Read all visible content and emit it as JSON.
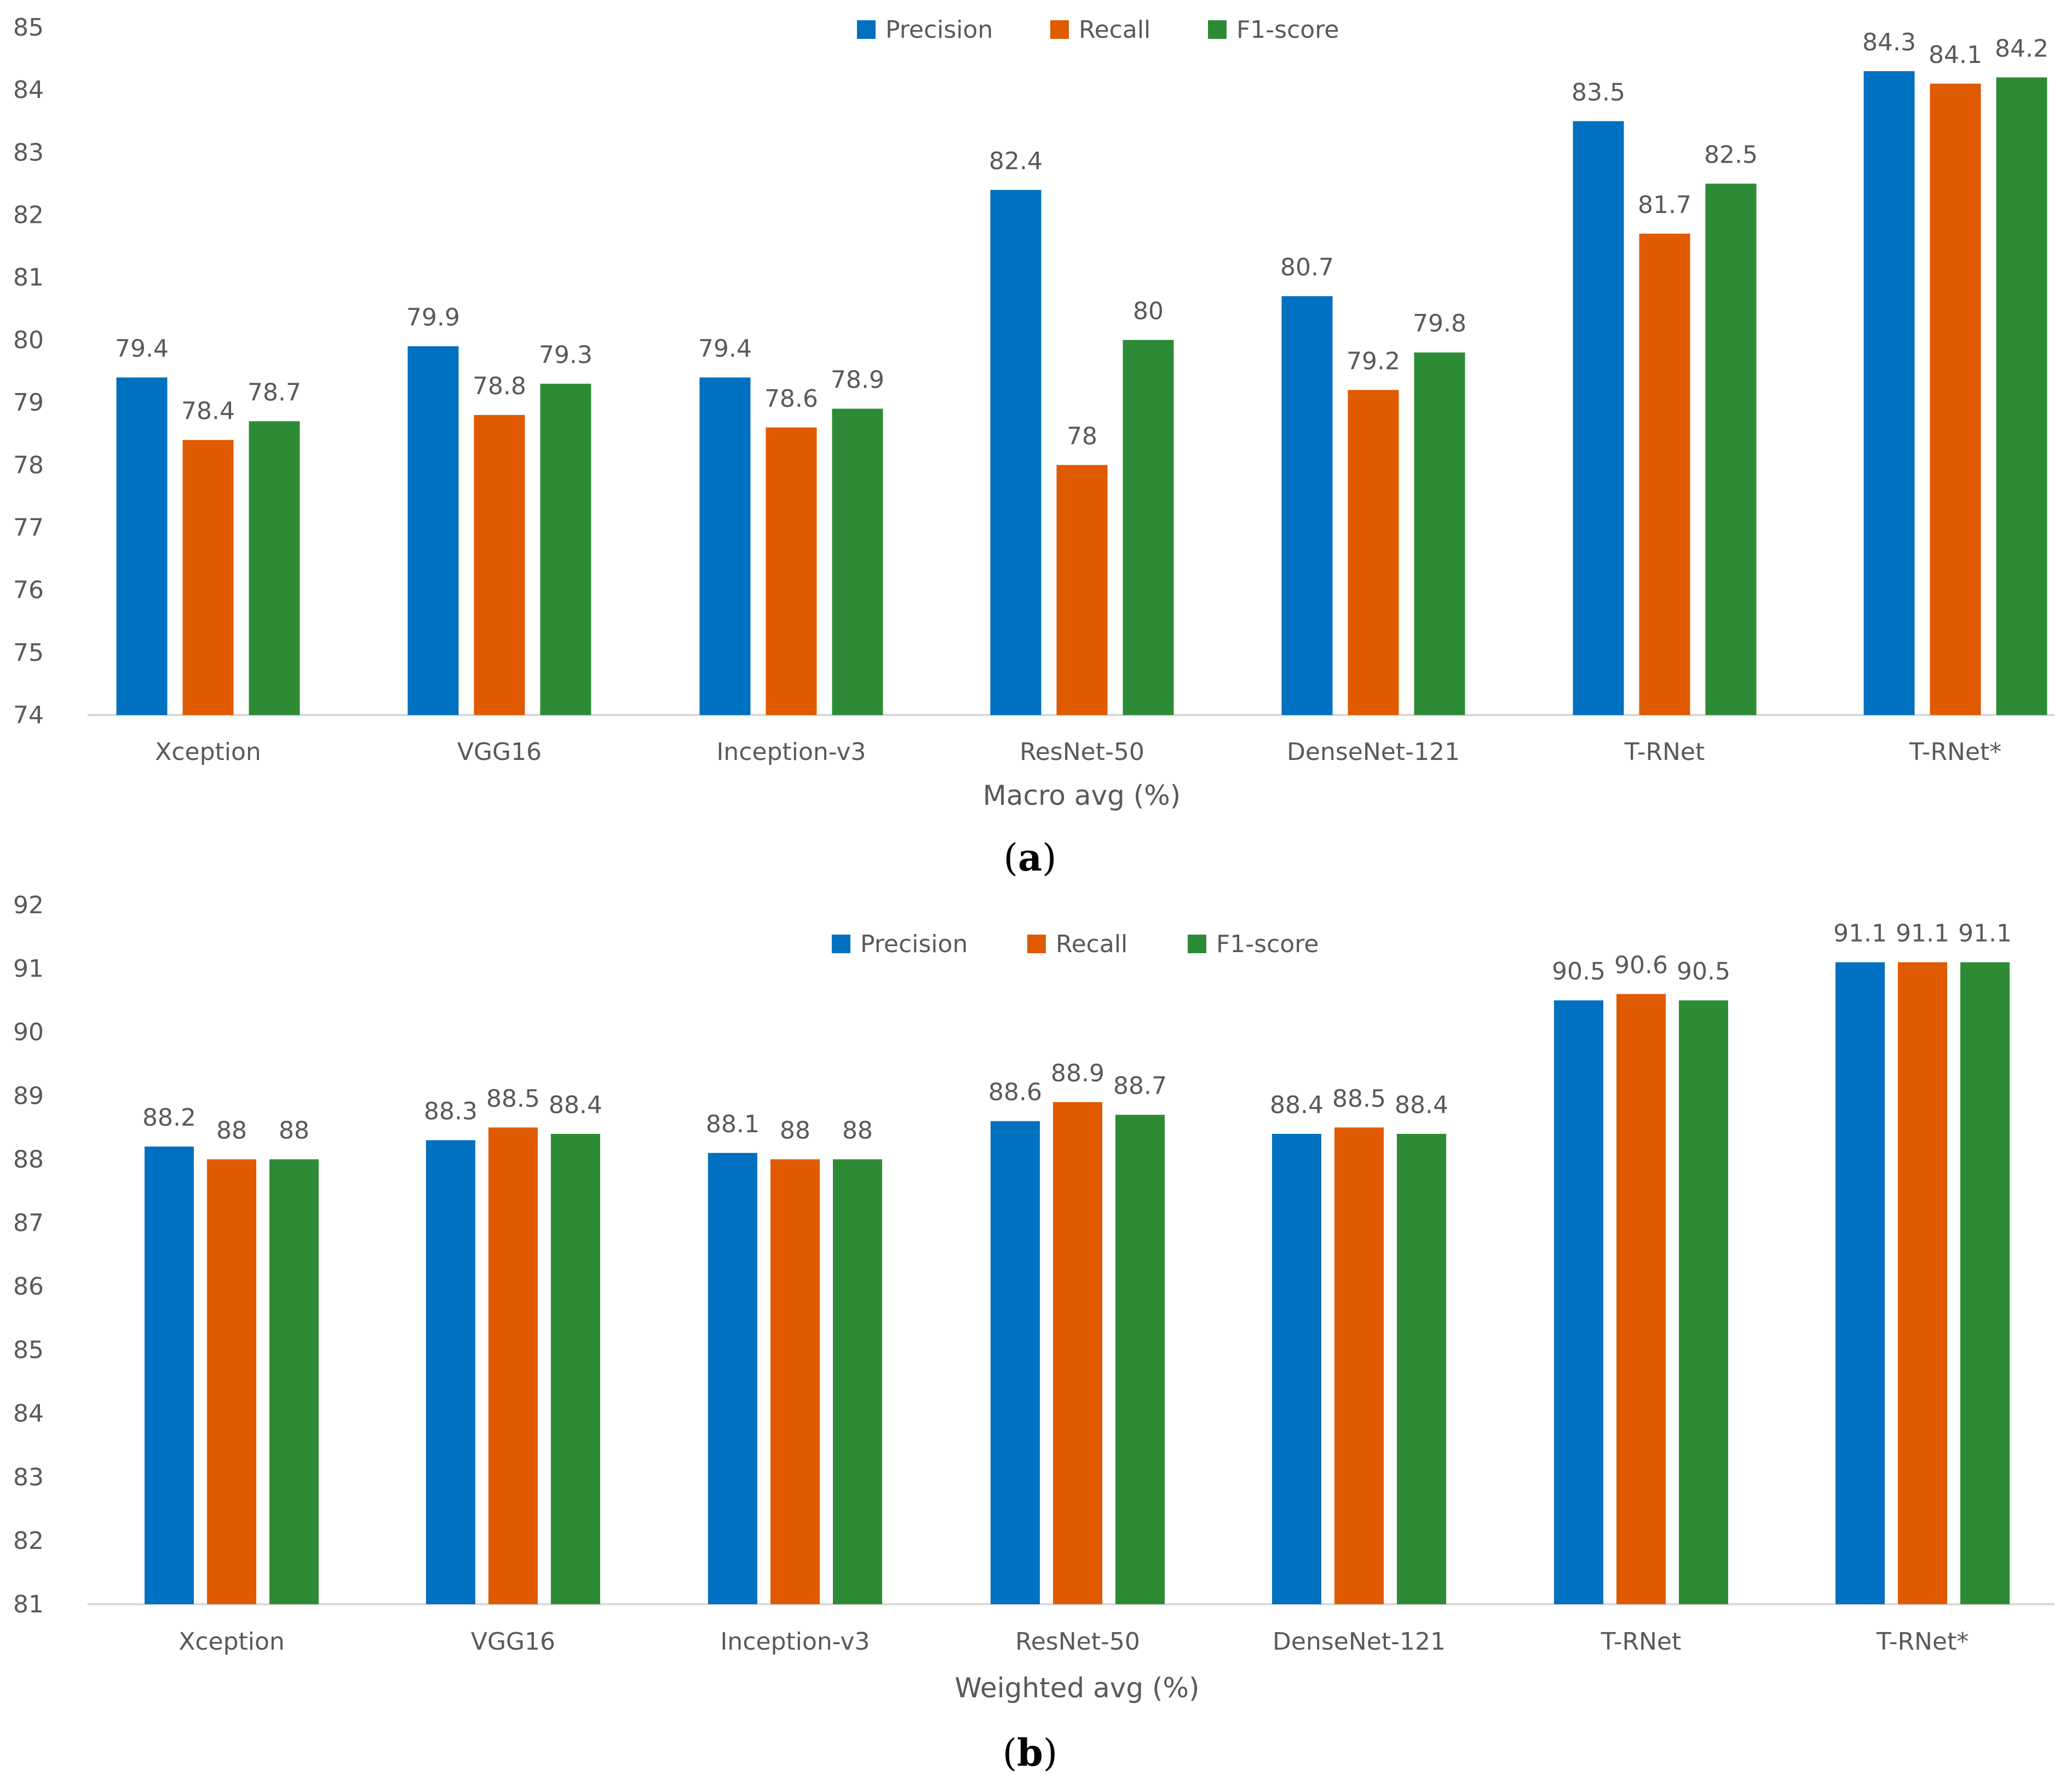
{
  "colors": {
    "Precision": "#0070C0",
    "Recall": "#E05A00",
    "F1-score": "#2E8B35",
    "axis": "#D9D9D9",
    "text": "#595959"
  },
  "chart_data": [
    {
      "type": "bar",
      "panel": "a",
      "caption_open": "(",
      "caption_letter": "a",
      "caption_close": ")",
      "xlabel": "Macro avg (%)",
      "ylabel": "",
      "ylim": [
        74,
        85
      ],
      "yticks": [
        "74",
        "75",
        "76",
        "77",
        "78",
        "79",
        "80",
        "81",
        "82",
        "83",
        "84",
        "85"
      ],
      "legend_position": "top-center",
      "categories": [
        "Xception",
        "VGG16",
        "Inception-v3",
        "ResNet-50",
        "DenseNet-121",
        "T-RNet",
        "T-RNet*"
      ],
      "series": [
        {
          "name": "Precision",
          "values": [
            79.4,
            79.9,
            79.4,
            82.4,
            80.7,
            83.5,
            84.3
          ]
        },
        {
          "name": "Recall",
          "values": [
            78.4,
            78.8,
            78.6,
            78,
            79.2,
            81.7,
            84.1
          ]
        },
        {
          "name": "F1-score",
          "values": [
            78.7,
            79.3,
            78.9,
            80,
            79.8,
            82.5,
            84.2
          ]
        }
      ]
    },
    {
      "type": "bar",
      "panel": "b",
      "caption_open": "(",
      "caption_letter": "b",
      "caption_close": ")",
      "xlabel": "Weighted avg (%)",
      "ylabel": "",
      "ylim": [
        81,
        92
      ],
      "yticks": [
        "81",
        "82",
        "83",
        "84",
        "85",
        "86",
        "87",
        "88",
        "89",
        "90",
        "91",
        "92"
      ],
      "legend_position": "top-center",
      "categories": [
        "Xception",
        "VGG16",
        "Inception-v3",
        "ResNet-50",
        "DenseNet-121",
        "T-RNet",
        "T-RNet*"
      ],
      "series": [
        {
          "name": "Precision",
          "values": [
            88.2,
            88.3,
            88.1,
            88.6,
            88.4,
            90.5,
            91.1
          ]
        },
        {
          "name": "Recall",
          "values": [
            88,
            88.5,
            88,
            88.9,
            88.5,
            90.6,
            91.1
          ]
        },
        {
          "name": "F1-score",
          "values": [
            88,
            88.4,
            88,
            88.7,
            88.4,
            90.5,
            91.1
          ]
        }
      ]
    }
  ]
}
